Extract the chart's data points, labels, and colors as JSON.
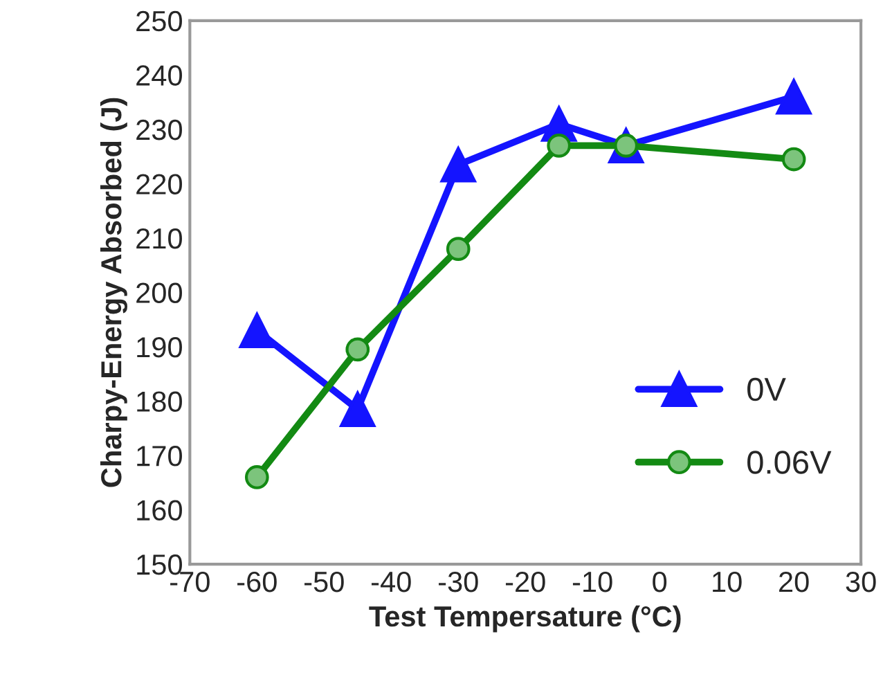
{
  "chart_data": {
    "type": "line",
    "xlabel": "Test Tempersature (°C)",
    "ylabel": "Charpy-Energy Absorbed (J)",
    "xlim": [
      -70,
      30
    ],
    "xticks": [
      -70,
      -60,
      -50,
      -40,
      -30,
      -20,
      -10,
      0,
      10,
      20,
      30
    ],
    "ylim": [
      150,
      250
    ],
    "yticks": [
      150,
      160,
      170,
      180,
      190,
      200,
      210,
      220,
      230,
      240,
      250
    ],
    "grid": false,
    "legend": "lower right",
    "series": [
      {
        "name": "0V",
        "color": "#1414ff",
        "marker": "triangle",
        "x": [
          -60,
          -45,
          -30,
          -15,
          -5,
          20
        ],
        "values": [
          193,
          178.5,
          223.5,
          231,
          227,
          236
        ]
      },
      {
        "name": "0.06V",
        "color": "#138a13",
        "marker": "circle",
        "x": [
          -60,
          -45,
          -30,
          -15,
          -5,
          20
        ],
        "values": [
          166,
          189.5,
          208,
          227,
          227,
          224.5
        ]
      }
    ]
  }
}
